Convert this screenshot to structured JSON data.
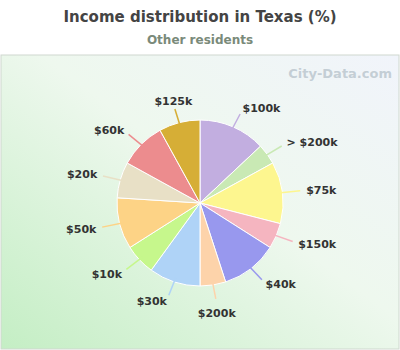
{
  "chart_data": {
    "type": "pie",
    "title": "Income distribution in Texas (%)",
    "subtitle": "Other residents",
    "categories": [
      "$100k",
      "> $200k",
      "$75k",
      "$150k",
      "$40k",
      "$200k",
      "$30k",
      "$10k",
      "$50k",
      "$20k",
      "$60k",
      "$125k"
    ],
    "values": [
      13,
      4,
      12,
      5,
      11,
      5,
      10,
      6,
      10,
      7,
      9,
      8
    ],
    "colors": [
      "#c2aee0",
      "#c9e9b4",
      "#fdf68f",
      "#f5b5c0",
      "#9898ee",
      "#fdd3aa",
      "#afd3f7",
      "#c6f78c",
      "#fdd386",
      "#e8e0c6",
      "#ec8c8e",
      "#d6ae36"
    ],
    "annotations": [
      "City-Data.com"
    ]
  }
}
